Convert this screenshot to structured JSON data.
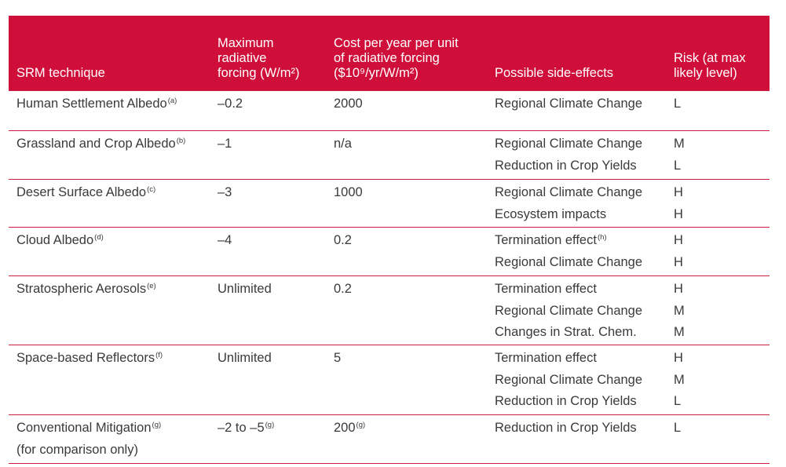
{
  "header": {
    "technique": "SRM technique",
    "forcing": "Maximum\nradiative\nforcing (W/m²)",
    "cost": "Cost per year per unit\nof radiative forcing\n($10⁹/yr/W/m²)",
    "side_effects": "Possible side-effects",
    "risk": "Risk (at max\nlikely level)"
  },
  "rows": [
    {
      "technique": "Human Settlement Albedo",
      "technique_note": "(a)",
      "forcing": "–0.2",
      "forcing_note": "",
      "cost": "2000",
      "cost_note": "",
      "effects": [
        {
          "text": "Regional Climate Change",
          "note": "",
          "risk": "L"
        }
      ]
    },
    {
      "technique": "Grassland and Crop Albedo",
      "technique_note": "(b)",
      "forcing": "–1",
      "forcing_note": "",
      "cost": "n/a",
      "cost_note": "",
      "effects": [
        {
          "text": "Regional Climate Change",
          "note": "",
          "risk": "M"
        },
        {
          "text": "Reduction in Crop Yields",
          "note": "",
          "risk": "L"
        }
      ]
    },
    {
      "technique": "Desert Surface Albedo",
      "technique_note": "(c)",
      "forcing": "–3",
      "forcing_note": "",
      "cost": "1000",
      "cost_note": "",
      "effects": [
        {
          "text": "Regional Climate Change",
          "note": "",
          "risk": "H"
        },
        {
          "text": "Ecosystem impacts",
          "note": "",
          "risk": "H"
        }
      ]
    },
    {
      "technique": "Cloud Albedo",
      "technique_note": "(d)",
      "forcing": "–4",
      "forcing_note": "",
      "cost": "0.2",
      "cost_note": "",
      "effects": [
        {
          "text": "Termination effect",
          "note": "(h)",
          "risk": "H"
        },
        {
          "text": "Regional Climate Change",
          "note": "",
          "risk": "H"
        }
      ]
    },
    {
      "technique": "Stratospheric Aerosols",
      "technique_note": "(e)",
      "forcing": "Unlimited",
      "forcing_note": "",
      "cost": "0.2",
      "cost_note": "",
      "effects": [
        {
          "text": "Termination effect",
          "note": "",
          "risk": "H"
        },
        {
          "text": "Regional Climate Change",
          "note": "",
          "risk": "M"
        },
        {
          "text": "Changes in Strat. Chem.",
          "note": "",
          "risk": "M"
        }
      ]
    },
    {
      "technique": "Space-based Reflectors",
      "technique_note": "(f)",
      "forcing": "Unlimited",
      "forcing_note": "",
      "cost": "5",
      "cost_note": "",
      "effects": [
        {
          "text": "Termination effect",
          "note": "",
          "risk": "H"
        },
        {
          "text": "Regional Climate Change",
          "note": "",
          "risk": "M"
        },
        {
          "text": "Reduction in Crop Yields",
          "note": "",
          "risk": "L"
        }
      ]
    },
    {
      "technique": "Conventional Mitigation",
      "technique_note": "(g)",
      "technique_line2": "(for comparison only)",
      "forcing": "–2 to –5",
      "forcing_note": "(g)",
      "cost": "200",
      "cost_note": "(g)",
      "effects": [
        {
          "text": "Reduction in Crop Yields",
          "note": "",
          "risk": "L"
        }
      ]
    }
  ]
}
